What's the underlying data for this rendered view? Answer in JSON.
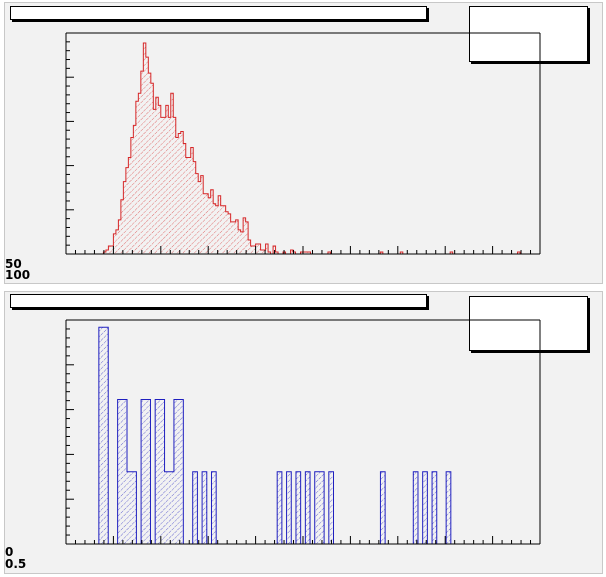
{
  "chart_data": [
    {
      "type": "bar",
      "title": "",
      "xlabel": "",
      "ylabel": "",
      "color": "#d62728",
      "fill": "hatched",
      "ylim": [
        0,
        110
      ],
      "y_axis_labels": [
        "50",
        "100"
      ],
      "values": [
        0,
        0,
        0,
        0,
        0,
        0,
        0,
        0,
        0,
        0,
        0,
        0,
        0,
        0,
        0,
        1,
        2,
        4,
        4,
        10,
        12,
        17,
        27,
        36,
        43,
        48,
        58,
        64,
        76,
        80,
        91,
        105,
        98,
        90,
        85,
        72,
        78,
        74,
        68,
        68,
        74,
        68,
        80,
        68,
        58,
        60,
        61,
        55,
        48,
        48,
        53,
        46,
        40,
        36,
        39,
        30,
        30,
        28,
        32,
        25,
        24,
        29,
        24,
        24,
        21,
        20,
        16,
        16,
        17,
        12,
        11,
        18,
        16,
        7,
        4,
        4,
        5,
        5,
        2,
        2,
        5,
        1,
        0,
        4,
        1,
        0,
        0,
        1,
        0,
        0,
        2,
        1,
        0,
        0,
        1,
        1,
        1,
        1,
        0,
        0,
        0,
        0,
        0,
        0,
        0,
        1,
        0,
        0,
        0,
        0,
        0,
        0,
        0,
        0,
        0,
        0,
        0,
        0,
        0,
        0,
        0,
        0,
        0,
        0,
        0,
        0,
        1,
        0,
        0,
        0,
        0,
        0,
        0,
        0,
        1,
        0,
        0,
        0,
        0,
        0,
        0,
        0,
        0,
        0,
        0,
        0,
        0,
        0,
        0,
        0,
        0,
        0,
        0,
        0,
        1,
        0,
        0,
        0,
        0,
        0,
        0,
        0,
        0,
        0,
        0,
        0,
        0,
        0,
        0,
        0,
        0,
        0,
        0,
        0,
        0,
        0,
        0,
        0,
        0,
        0,
        0,
        1,
        0,
        0,
        0,
        0,
        0,
        0,
        0,
        0
      ]
    },
    {
      "type": "bar",
      "title": "",
      "xlabel": "",
      "ylabel": "",
      "color": "#1f1fbf",
      "fill": "hatched",
      "ylim": [
        0,
        6.2
      ],
      "y_axis_labels": [
        "0",
        "0.5"
      ],
      "values": [
        0,
        0,
        0,
        0,
        0,
        0,
        0,
        6,
        6,
        0,
        0,
        4,
        4,
        2,
        2,
        0,
        4,
        4,
        0,
        4,
        4,
        2,
        2,
        4,
        4,
        0,
        0,
        2,
        0,
        2,
        0,
        2,
        0,
        0,
        0,
        0,
        0,
        0,
        0,
        0,
        0,
        0,
        0,
        0,
        0,
        2,
        0,
        2,
        0,
        2,
        0,
        2,
        0,
        2,
        2,
        0,
        2,
        0,
        0,
        0,
        0,
        0,
        0,
        0,
        0,
        0,
        0,
        2,
        0,
        0,
        0,
        0,
        0,
        0,
        2,
        0,
        2,
        0,
        2,
        0,
        0,
        2,
        0,
        0,
        0,
        0,
        0,
        0,
        0,
        0,
        0,
        0,
        0,
        0,
        0,
        0,
        0,
        0,
        0,
        0,
        0
      ]
    }
  ]
}
